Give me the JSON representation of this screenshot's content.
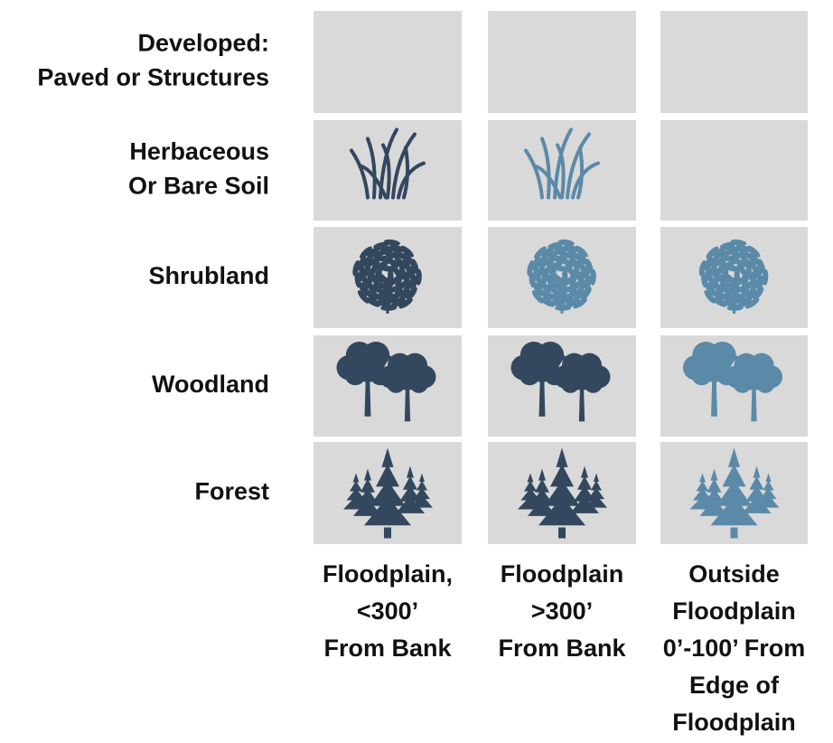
{
  "rows": [
    {
      "label": [
        "Developed:",
        "Paved or Structures"
      ],
      "cells": [
        null,
        null,
        null
      ]
    },
    {
      "label": [
        "Herbaceous",
        "Or Bare Soil"
      ],
      "cells": [
        "#33475e",
        "#5b8aa8",
        null
      ]
    },
    {
      "label": [
        "Shrubland"
      ],
      "cells": [
        "#33475e",
        "#5b8aa8",
        "#5b8aa8"
      ]
    },
    {
      "label": [
        "Woodland"
      ],
      "cells": [
        "#33475e",
        "#33475e",
        "#5b8aa8"
      ]
    },
    {
      "label": [
        "Forest"
      ],
      "cells": [
        "#33475e",
        "#33475e",
        "#5b8aa8"
      ]
    }
  ],
  "columns": [
    [
      "Floodplain,",
      "<300’",
      "From Bank"
    ],
    [
      "Floodplain",
      ">300’",
      "From Bank"
    ],
    [
      "Outside",
      "Floodplain",
      "0’-100’ From",
      "Edge of",
      "Floodplain"
    ]
  ]
}
